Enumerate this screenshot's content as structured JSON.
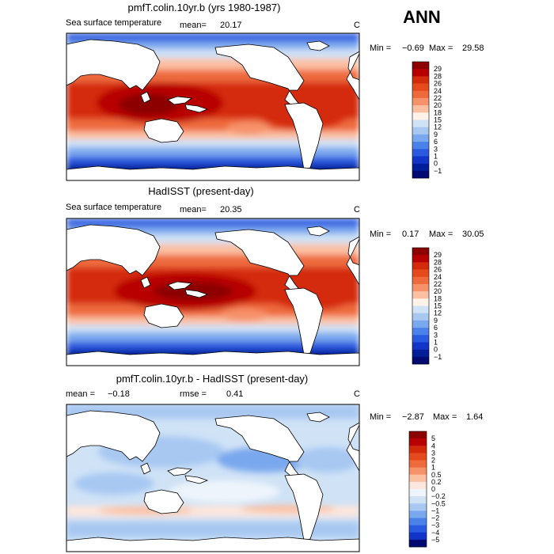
{
  "season": "ANN",
  "colors": {
    "land": "#ffffff",
    "frame": "#000000"
  },
  "chart_data": [
    {
      "type": "heatmap",
      "title": "pmfT.colin.10yr.b (yrs 1980-1987)",
      "variable": "Sea surface temperature",
      "mean_label": "mean=",
      "mean_value": "20.17",
      "units": "C",
      "min_label": "Min =",
      "min_value": "−0.69",
      "max_label": "Max =",
      "max_value": "29.58",
      "levels": [
        "29",
        "28",
        "26",
        "24",
        "22",
        "20",
        "18",
        "15",
        "12",
        "9",
        "6",
        "3",
        "1",
        "0",
        "−1"
      ],
      "level_colors": [
        "#8c0000",
        "#b80000",
        "#d42a0c",
        "#e44a1c",
        "#ee6a3c",
        "#f6926a",
        "#fbc0a2",
        "#fff2e6",
        "#cfe2f6",
        "#a8c8f2",
        "#7aa8ee",
        "#4a82ea",
        "#2a5ae0",
        "#1234c8",
        "#001e9a",
        "#000a70"
      ],
      "grid": "lat-lon global field",
      "xlim": [
        0,
        360
      ],
      "ylim": [
        -90,
        90
      ]
    },
    {
      "type": "heatmap",
      "title": "HadISST (present-day)",
      "variable": "Sea surface temperature",
      "mean_label": "mean=",
      "mean_value": "20.35",
      "units": "C",
      "min_label": "Min =",
      "min_value": "0.17",
      "max_label": "Max =",
      "max_value": "30.05",
      "levels": [
        "29",
        "28",
        "26",
        "24",
        "22",
        "20",
        "18",
        "15",
        "12",
        "9",
        "6",
        "3",
        "1",
        "0",
        "−1"
      ],
      "level_colors": [
        "#8c0000",
        "#b80000",
        "#d42a0c",
        "#e44a1c",
        "#ee6a3c",
        "#f6926a",
        "#fbc0a2",
        "#fff2e6",
        "#cfe2f6",
        "#a8c8f2",
        "#7aa8ee",
        "#4a82ea",
        "#2a5ae0",
        "#1234c8",
        "#001e9a",
        "#000a70"
      ],
      "grid": "lat-lon global field",
      "xlim": [
        0,
        360
      ],
      "ylim": [
        -90,
        90
      ]
    },
    {
      "type": "heatmap",
      "title": "pmfT.colin.10yr.b - HadISST (present-day)",
      "mean_label": "mean =",
      "mean_value": "−0.18",
      "rmse_label": "rmse =",
      "rmse_value": "0.41",
      "units": "C",
      "min_label": "Min =",
      "min_value": "−2.87",
      "max_label": "Max =",
      "max_value": "1.64",
      "levels": [
        "5",
        "4",
        "3",
        "2",
        "1",
        "0.5",
        "0.2",
        "0",
        "−0.2",
        "−0.5",
        "−1",
        "−2",
        "−3",
        "−4",
        "−5"
      ],
      "level_colors": [
        "#8c0000",
        "#b80000",
        "#d42a0c",
        "#e44a1c",
        "#ee6a3c",
        "#f6926a",
        "#fbc0a2",
        "#fde6dc",
        "#eef4fb",
        "#cfe2f6",
        "#a8c8f2",
        "#7aa8ee",
        "#4a82ea",
        "#2a5ae0",
        "#1234c8",
        "#000a70"
      ],
      "grid": "lat-lon global field",
      "xlim": [
        0,
        360
      ],
      "ylim": [
        -90,
        90
      ]
    }
  ]
}
